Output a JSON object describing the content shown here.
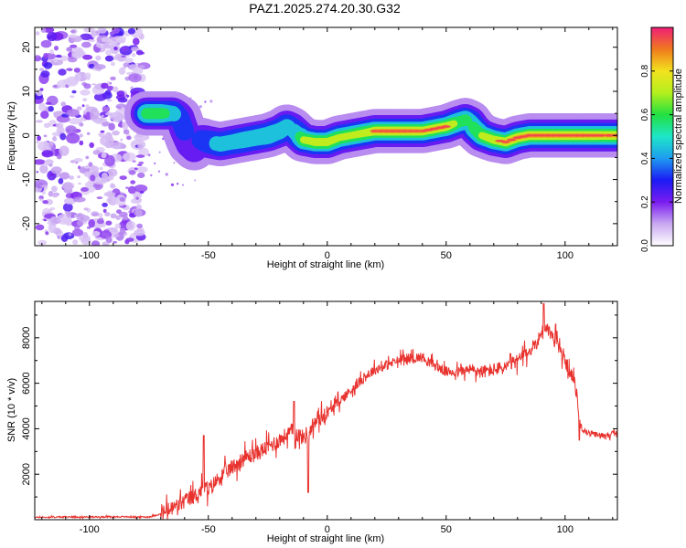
{
  "chart_data": [
    {
      "type": "heatmap",
      "title": "PAZ1.2025.274.20.30.G32",
      "xlabel": "Height of straight line (km)",
      "ylabel": "Frequency (Hz)",
      "xlim": [
        -123,
        122
      ],
      "ylim": [
        -25,
        24.5
      ],
      "xticks": [
        -100,
        -50,
        0,
        50,
        100
      ],
      "yticks": [
        -20,
        -10,
        0,
        10,
        20
      ],
      "colorbar": {
        "label": "Normalized spectral amplitude",
        "range": [
          0,
          1
        ],
        "ticks": [
          0.0,
          0.2,
          0.4,
          0.6,
          0.8
        ],
        "tick_labels": [
          "0.0",
          "0.2",
          "0.4",
          "0.6",
          "0.8"
        ]
      },
      "noise_region": {
        "x": [
          -122,
          -77
        ],
        "y": [
          -25,
          24
        ],
        "level": 0.15
      },
      "ridge": {
        "x": [
          -76,
          -70,
          -65,
          -62,
          -60,
          -58,
          -56,
          -53,
          -50,
          -45,
          -40,
          -35,
          -30,
          -25,
          -20,
          -17,
          -15,
          -12,
          -10,
          -5,
          0,
          5,
          10,
          15,
          20,
          25,
          30,
          35,
          40,
          45,
          50,
          55,
          58,
          60,
          62,
          65,
          70,
          75,
          80,
          85,
          90,
          95,
          100,
          105,
          110,
          115,
          122
        ],
        "y": [
          5,
          5,
          5,
          4,
          1,
          -2,
          -3,
          -1,
          -1.5,
          -2,
          -1.5,
          -1,
          -0.5,
          0,
          1,
          2,
          1.5,
          0,
          -1,
          -1.5,
          -1.5,
          -0.5,
          0,
          0.5,
          1,
          1,
          1,
          1,
          1,
          1.5,
          2,
          3,
          3.5,
          3,
          1.5,
          0,
          -1,
          -1.5,
          -0.5,
          0,
          0,
          0,
          0,
          0,
          0,
          0,
          0
        ],
        "amplitude": [
          0.6,
          0.6,
          0.45,
          0.3,
          0.3,
          0.25,
          0.25,
          0.3,
          0.4,
          0.45,
          0.45,
          0.5,
          0.5,
          0.55,
          0.5,
          0.45,
          0.4,
          0.5,
          0.7,
          0.8,
          0.8,
          0.7,
          0.7,
          0.75,
          0.85,
          0.95,
          0.95,
          0.9,
          0.85,
          0.85,
          0.85,
          0.6,
          0.6,
          0.5,
          0.6,
          0.7,
          0.8,
          0.85,
          0.95,
          0.95,
          0.95,
          0.95,
          0.9,
          0.95,
          0.9,
          0.85,
          0.85
        ]
      }
    },
    {
      "type": "line",
      "xlabel": "Height of straight line (km)",
      "ylabel": "SNR (10 * v/v)",
      "xlim": [
        -123,
        122
      ],
      "ylim": [
        0,
        9600
      ],
      "xticks": [
        -100,
        -50,
        0,
        50,
        100
      ],
      "yticks": [
        2000,
        4000,
        6000,
        8000
      ],
      "series": [
        {
          "name": "SNR",
          "color": "#e8322e",
          "x": [
            -123,
            -110,
            -100,
            -90,
            -80,
            -75,
            -70,
            -65,
            -60,
            -55,
            -52,
            -50,
            -45,
            -40,
            -35,
            -30,
            -25,
            -20,
            -15,
            -10,
            -5,
            0,
            5,
            10,
            15,
            20,
            25,
            30,
            35,
            40,
            45,
            50,
            55,
            60,
            65,
            70,
            75,
            80,
            85,
            88,
            90,
            92,
            95,
            98,
            100,
            102,
            104,
            105,
            106,
            108,
            110,
            115,
            122
          ],
          "y": [
            100,
            120,
            120,
            130,
            120,
            120,
            250,
            500,
            800,
            1100,
            1400,
            1300,
            1900,
            2300,
            2700,
            2900,
            3200,
            3500,
            3900,
            3600,
            4300,
            4700,
            5200,
            5700,
            6200,
            6600,
            6800,
            7000,
            7100,
            7150,
            6800,
            6500,
            6500,
            6600,
            6500,
            6600,
            6700,
            7000,
            7400,
            7800,
            8200,
            8500,
            8000,
            7400,
            7000,
            6500,
            6000,
            5500,
            4200,
            3900,
            3800,
            3700,
            3800
          ],
          "spikes": [
            {
              "x": -52,
              "y": 3700
            },
            {
              "x": -14,
              "y": 5200
            },
            {
              "x": -8,
              "y": 1200
            },
            {
              "x": 28,
              "y": 7000
            },
            {
              "x": 77,
              "y": 7300
            },
            {
              "x": 91,
              "y": 9500
            },
            {
              "x": 96,
              "y": 8600
            },
            {
              "x": 106,
              "y": 3500
            }
          ]
        }
      ]
    }
  ]
}
